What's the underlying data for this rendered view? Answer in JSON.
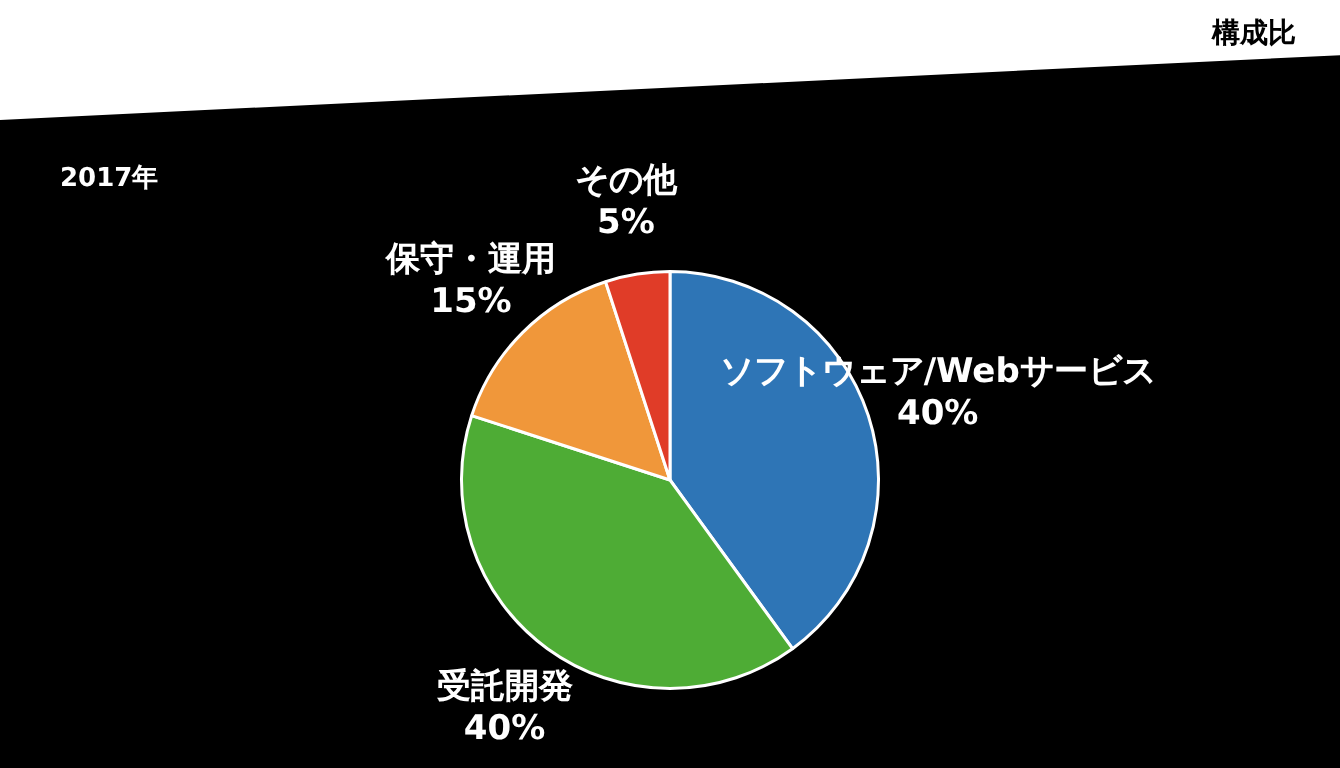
{
  "chart_data": {
    "type": "pie",
    "title": "構成比",
    "subtitle": "2017年",
    "categories": [
      "ソフトウェア/Webサービス",
      "受託開発",
      "保守・運用",
      "その他"
    ],
    "values": [
      40,
      40,
      15,
      5
    ],
    "value_labels": [
      "40%",
      "40%",
      "15%",
      "5%"
    ],
    "colors": [
      "#2e75b6",
      "#4eac35",
      "#f0973a",
      "#e03c28"
    ],
    "legend": false
  }
}
